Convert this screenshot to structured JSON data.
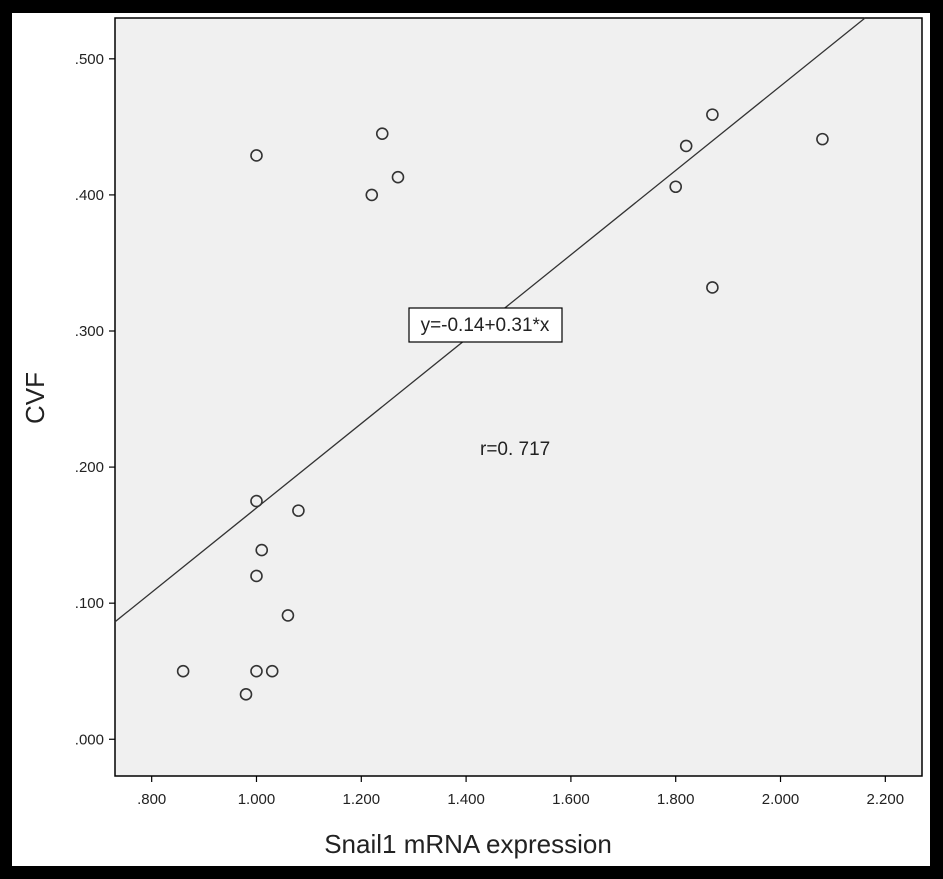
{
  "chart_data": {
    "type": "scatter",
    "title": "",
    "xlabel": "Snail1 mRNA expression",
    "ylabel": "CVF",
    "xlim": [
      0.73,
      2.27
    ],
    "ylim": [
      -0.027,
      0.53
    ],
    "x_ticks": [
      0.8,
      1.0,
      1.2,
      1.4,
      1.6,
      1.8,
      2.0,
      2.2
    ],
    "x_tick_labels": [
      ".800",
      "1.000",
      "1.200",
      "1.400",
      "1.600",
      "1.800",
      "2.000",
      "2.200"
    ],
    "y_ticks": [
      0.0,
      0.1,
      0.2,
      0.3,
      0.4,
      0.5
    ],
    "y_tick_labels": [
      ".000",
      ".100",
      ".200",
      ".300",
      ".400",
      ".500"
    ],
    "grid": false,
    "colors": {
      "plot_background": "#f0f0f0",
      "figure_background": "#ffffff",
      "frame": "#000000",
      "markers": "#333333",
      "fit_line": "#333333"
    },
    "points": [
      {
        "x": 0.86,
        "y": 0.05
      },
      {
        "x": 0.98,
        "y": 0.033
      },
      {
        "x": 1.0,
        "y": 0.05
      },
      {
        "x": 1.03,
        "y": 0.05
      },
      {
        "x": 1.0,
        "y": 0.12
      },
      {
        "x": 1.06,
        "y": 0.091
      },
      {
        "x": 1.01,
        "y": 0.139
      },
      {
        "x": 1.0,
        "y": 0.175
      },
      {
        "x": 1.08,
        "y": 0.168
      },
      {
        "x": 1.0,
        "y": 0.429
      },
      {
        "x": 1.22,
        "y": 0.4
      },
      {
        "x": 1.24,
        "y": 0.445
      },
      {
        "x": 1.27,
        "y": 0.413
      },
      {
        "x": 1.8,
        "y": 0.406
      },
      {
        "x": 1.82,
        "y": 0.436
      },
      {
        "x": 1.87,
        "y": 0.459
      },
      {
        "x": 1.87,
        "y": 0.332
      },
      {
        "x": 2.08,
        "y": 0.441
      }
    ],
    "fit_line": {
      "intercept": -0.14,
      "slope": 0.31
    },
    "annotations": {
      "equation": "y=-0.14+0.31*x",
      "r_value": "r=0. 717"
    }
  }
}
